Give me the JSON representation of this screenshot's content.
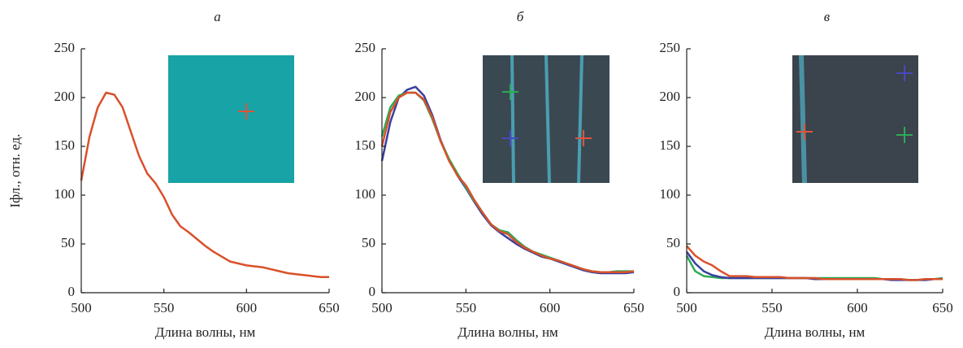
{
  "chart_data": [
    {
      "type": "line",
      "title": "а",
      "y_label": "Iфл., отн. ед.",
      "x_label": "Длина волны, нм",
      "x": [
        500,
        505,
        510,
        515,
        520,
        525,
        530,
        535,
        540,
        545,
        550,
        555,
        560,
        565,
        570,
        575,
        580,
        585,
        590,
        595,
        600,
        605,
        610,
        615,
        620,
        625,
        630,
        635,
        640,
        645,
        650
      ],
      "series": [
        {
          "color": "#d9502b",
          "values": [
            115,
            160,
            190,
            205,
            203,
            190,
            165,
            140,
            122,
            112,
            98,
            80,
            68,
            62,
            55,
            48,
            42,
            37,
            32,
            30,
            28,
            27,
            26,
            24,
            22,
            20,
            19,
            18,
            17,
            16,
            16
          ]
        }
      ],
      "xlim": [
        500,
        650
      ],
      "xticks": [
        500,
        550,
        600,
        650
      ],
      "ylim": [
        0,
        250
      ],
      "yticks": [
        0,
        50,
        100,
        150,
        200,
        250
      ]
    },
    {
      "type": "line",
      "title": "б",
      "x_label": "Длина волны, нм",
      "x": [
        500,
        505,
        510,
        515,
        520,
        525,
        530,
        535,
        540,
        545,
        550,
        555,
        560,
        565,
        570,
        575,
        580,
        585,
        590,
        595,
        600,
        605,
        610,
        615,
        620,
        625,
        630,
        635,
        640,
        645,
        650
      ],
      "series": [
        {
          "color": "#d9502b",
          "values": [
            150,
            185,
            200,
            205,
            205,
            198,
            180,
            155,
            135,
            120,
            110,
            95,
            82,
            70,
            63,
            60,
            52,
            46,
            42,
            38,
            35,
            33,
            30,
            27,
            24,
            22,
            21,
            21,
            21,
            21,
            22
          ]
        },
        {
          "color": "#2eaa55",
          "values": [
            160,
            190,
            202,
            205,
            205,
            197,
            178,
            155,
            137,
            122,
            108,
            94,
            82,
            70,
            64,
            62,
            54,
            47,
            42,
            39,
            36,
            33,
            30,
            27,
            24,
            22,
            21,
            21,
            22,
            22,
            22
          ]
        },
        {
          "color": "#3a3f9e",
          "values": [
            135,
            175,
            200,
            208,
            211,
            202,
            182,
            156,
            136,
            120,
            107,
            93,
            80,
            69,
            62,
            56,
            50,
            45,
            41,
            37,
            35,
            32,
            29,
            26,
            23,
            21,
            20,
            20,
            20,
            20,
            21
          ]
        }
      ],
      "xlim": [
        500,
        650
      ],
      "xticks": [
        500,
        550,
        600,
        650
      ],
      "ylim": [
        0,
        250
      ],
      "yticks": [
        0,
        50,
        100,
        150,
        200,
        250
      ]
    },
    {
      "type": "line",
      "title": "в",
      "x_label": "Длина волны, нм",
      "x": [
        500,
        505,
        510,
        515,
        520,
        525,
        530,
        535,
        540,
        545,
        550,
        555,
        560,
        565,
        570,
        575,
        580,
        585,
        590,
        595,
        600,
        605,
        610,
        615,
        620,
        625,
        630,
        635,
        640,
        645,
        650
      ],
      "series": [
        {
          "color": "#d9502b",
          "values": [
            48,
            38,
            32,
            28,
            22,
            17,
            17,
            17,
            16,
            16,
            16,
            16,
            15,
            15,
            15,
            15,
            14,
            14,
            14,
            14,
            14,
            14,
            14,
            14,
            14,
            14,
            13,
            13,
            14,
            14,
            14
          ]
        },
        {
          "color": "#3a3f9e",
          "values": [
            42,
            30,
            22,
            18,
            16,
            15,
            15,
            15,
            15,
            15,
            15,
            15,
            15,
            15,
            15,
            14,
            14,
            14,
            14,
            14,
            14,
            14,
            14,
            14,
            13,
            13,
            13,
            13,
            13,
            14,
            14
          ]
        },
        {
          "color": "#2eaa55",
          "values": [
            38,
            22,
            17,
            16,
            15,
            15,
            15,
            15,
            15,
            15,
            15,
            15,
            15,
            15,
            15,
            15,
            15,
            15,
            15,
            15,
            15,
            15,
            15,
            14,
            14,
            14,
            13,
            13,
            14,
            14,
            15
          ]
        }
      ],
      "xlim": [
        500,
        650
      ],
      "xticks": [
        500,
        550,
        600,
        650
      ],
      "ylim": [
        0,
        250
      ],
      "yticks": [
        0,
        50,
        100,
        150,
        200,
        250
      ]
    }
  ]
}
